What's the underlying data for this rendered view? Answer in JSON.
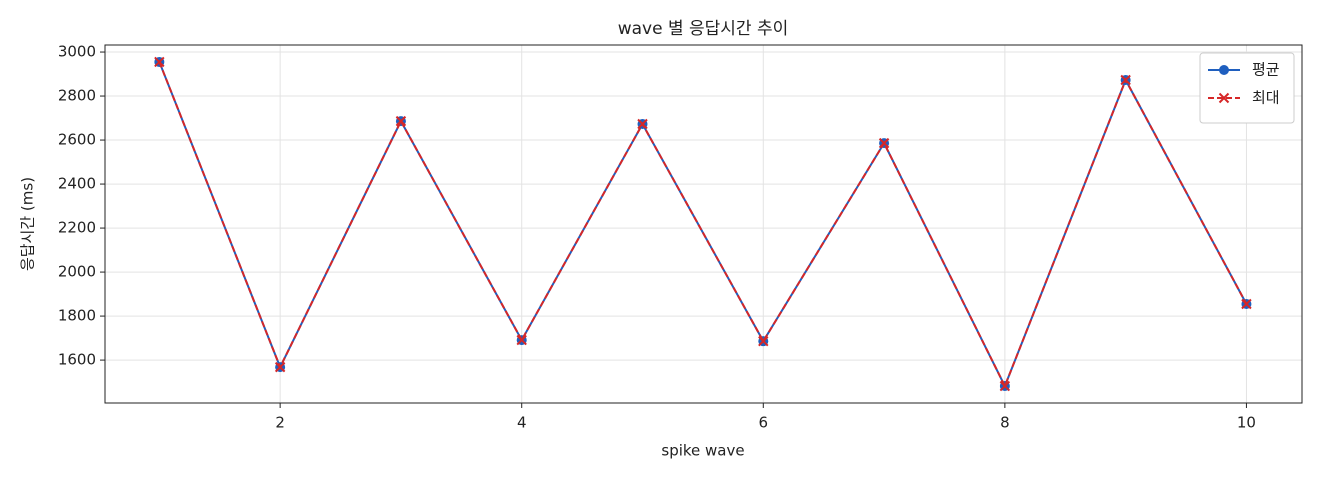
{
  "chart_data": {
    "type": "line",
    "title": "wave 별 응답시간 추이",
    "xlabel": "spike wave",
    "ylabel": "응답시간 (ms)",
    "x": [
      1,
      2,
      3,
      4,
      5,
      6,
      7,
      8,
      9,
      10
    ],
    "series": [
      {
        "name": "평균",
        "color": "#1f5fbf",
        "marker": "o",
        "linestyle": "solid",
        "values": [
          2955,
          1568,
          2686,
          1691,
          2673,
          1686,
          2586,
          1482,
          2873,
          1855
        ]
      },
      {
        "name": "최대",
        "color": "#d62728",
        "marker": "x",
        "linestyle": "dashed",
        "values": [
          2955,
          1568,
          2686,
          1691,
          2673,
          1686,
          2586,
          1482,
          2873,
          1855
        ]
      }
    ],
    "xlim": [
      0.55,
      10.46
    ],
    "ylim": [
      1405,
      3032
    ],
    "xticks": [
      2,
      4,
      6,
      8,
      10
    ],
    "yticks": [
      1600,
      1800,
      2000,
      2200,
      2400,
      2600,
      2800,
      3000
    ],
    "grid": true,
    "legend": "upper right"
  }
}
